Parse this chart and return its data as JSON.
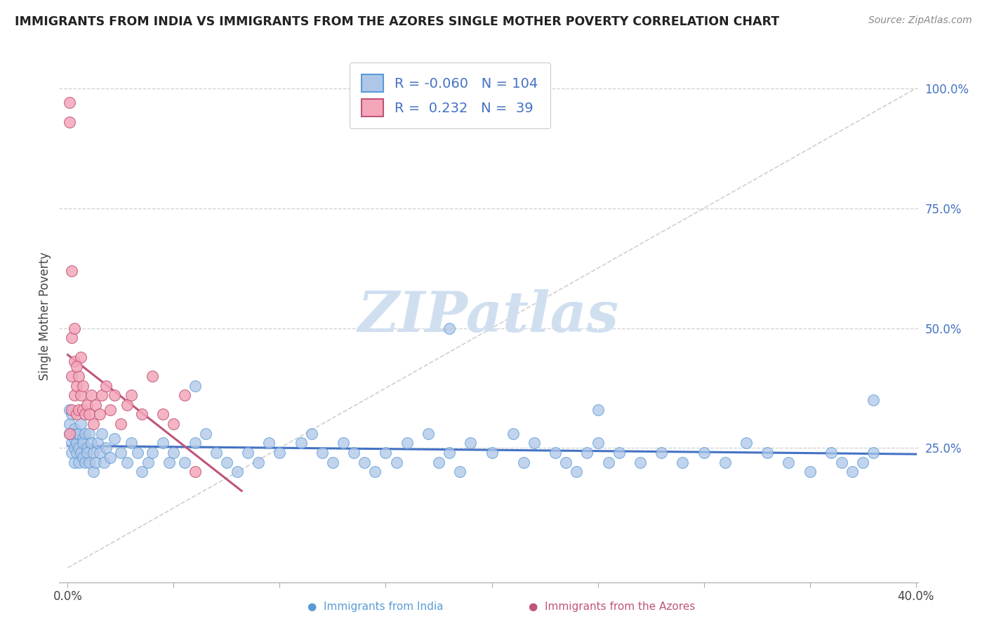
{
  "title": "IMMIGRANTS FROM INDIA VS IMMIGRANTS FROM THE AZORES SINGLE MOTHER POVERTY CORRELATION CHART",
  "source": "Source: ZipAtlas.com",
  "ylabel": "Single Mother Poverty",
  "color_india_fill": "#aec6e8",
  "color_india_edge": "#5b9bd5",
  "color_azores_fill": "#f4a7b9",
  "color_azores_edge": "#c0547a",
  "color_india_line": "#4472c4",
  "color_azores_line": "#c0547a",
  "color_diag": "#bbbbbb",
  "color_grid": "#cccccc",
  "color_right_tick": "#4472c4",
  "watermark_color": "#d0dff0",
  "background_color": "#ffffff",
  "legend_r_india": "-0.060",
  "legend_n_india": "104",
  "legend_r_azores": "0.232",
  "legend_n_azores": "39",
  "xlim": [
    0.0,
    0.4
  ],
  "ylim": [
    0.0,
    1.05
  ],
  "india_x": [
    0.001,
    0.001,
    0.001,
    0.002,
    0.002,
    0.002,
    0.002,
    0.003,
    0.003,
    0.003,
    0.003,
    0.004,
    0.004,
    0.004,
    0.005,
    0.005,
    0.005,
    0.006,
    0.006,
    0.007,
    0.007,
    0.007,
    0.008,
    0.008,
    0.009,
    0.009,
    0.01,
    0.01,
    0.011,
    0.012,
    0.012,
    0.013,
    0.014,
    0.015,
    0.016,
    0.017,
    0.018,
    0.02,
    0.022,
    0.025,
    0.028,
    0.03,
    0.033,
    0.035,
    0.038,
    0.04,
    0.045,
    0.048,
    0.05,
    0.055,
    0.06,
    0.065,
    0.07,
    0.075,
    0.08,
    0.085,
    0.09,
    0.095,
    0.1,
    0.11,
    0.115,
    0.12,
    0.125,
    0.13,
    0.135,
    0.14,
    0.145,
    0.15,
    0.155,
    0.16,
    0.17,
    0.175,
    0.18,
    0.185,
    0.19,
    0.2,
    0.21,
    0.215,
    0.22,
    0.23,
    0.235,
    0.24,
    0.245,
    0.25,
    0.255,
    0.26,
    0.27,
    0.28,
    0.29,
    0.3,
    0.31,
    0.32,
    0.33,
    0.34,
    0.35,
    0.36,
    0.365,
    0.37,
    0.375,
    0.38,
    0.06,
    0.18,
    0.25,
    0.38
  ],
  "india_y": [
    0.3,
    0.28,
    0.33,
    0.26,
    0.28,
    0.24,
    0.32,
    0.27,
    0.25,
    0.29,
    0.22,
    0.26,
    0.28,
    0.24,
    0.25,
    0.28,
    0.22,
    0.3,
    0.24,
    0.27,
    0.23,
    0.26,
    0.28,
    0.22,
    0.25,
    0.24,
    0.28,
    0.22,
    0.26,
    0.24,
    0.2,
    0.22,
    0.26,
    0.24,
    0.28,
    0.22,
    0.25,
    0.23,
    0.27,
    0.24,
    0.22,
    0.26,
    0.24,
    0.2,
    0.22,
    0.24,
    0.26,
    0.22,
    0.24,
    0.22,
    0.26,
    0.28,
    0.24,
    0.22,
    0.2,
    0.24,
    0.22,
    0.26,
    0.24,
    0.26,
    0.28,
    0.24,
    0.22,
    0.26,
    0.24,
    0.22,
    0.2,
    0.24,
    0.22,
    0.26,
    0.28,
    0.22,
    0.24,
    0.2,
    0.26,
    0.24,
    0.28,
    0.22,
    0.26,
    0.24,
    0.22,
    0.2,
    0.24,
    0.26,
    0.22,
    0.24,
    0.22,
    0.24,
    0.22,
    0.24,
    0.22,
    0.26,
    0.24,
    0.22,
    0.2,
    0.24,
    0.22,
    0.2,
    0.22,
    0.24,
    0.38,
    0.5,
    0.33,
    0.35
  ],
  "azores_x": [
    0.001,
    0.001,
    0.002,
    0.002,
    0.002,
    0.003,
    0.003,
    0.004,
    0.004,
    0.005,
    0.005,
    0.006,
    0.006,
    0.007,
    0.007,
    0.008,
    0.009,
    0.01,
    0.011,
    0.012,
    0.013,
    0.015,
    0.016,
    0.018,
    0.02,
    0.022,
    0.025,
    0.028,
    0.03,
    0.035,
    0.04,
    0.045,
    0.05,
    0.055,
    0.06,
    0.003,
    0.004,
    0.002,
    0.001
  ],
  "azores_y": [
    0.97,
    0.93,
    0.48,
    0.4,
    0.33,
    0.43,
    0.36,
    0.38,
    0.32,
    0.4,
    0.33,
    0.44,
    0.36,
    0.38,
    0.33,
    0.32,
    0.34,
    0.32,
    0.36,
    0.3,
    0.34,
    0.32,
    0.36,
    0.38,
    0.33,
    0.36,
    0.3,
    0.34,
    0.36,
    0.32,
    0.4,
    0.32,
    0.3,
    0.36,
    0.2,
    0.5,
    0.42,
    0.62,
    0.28
  ]
}
